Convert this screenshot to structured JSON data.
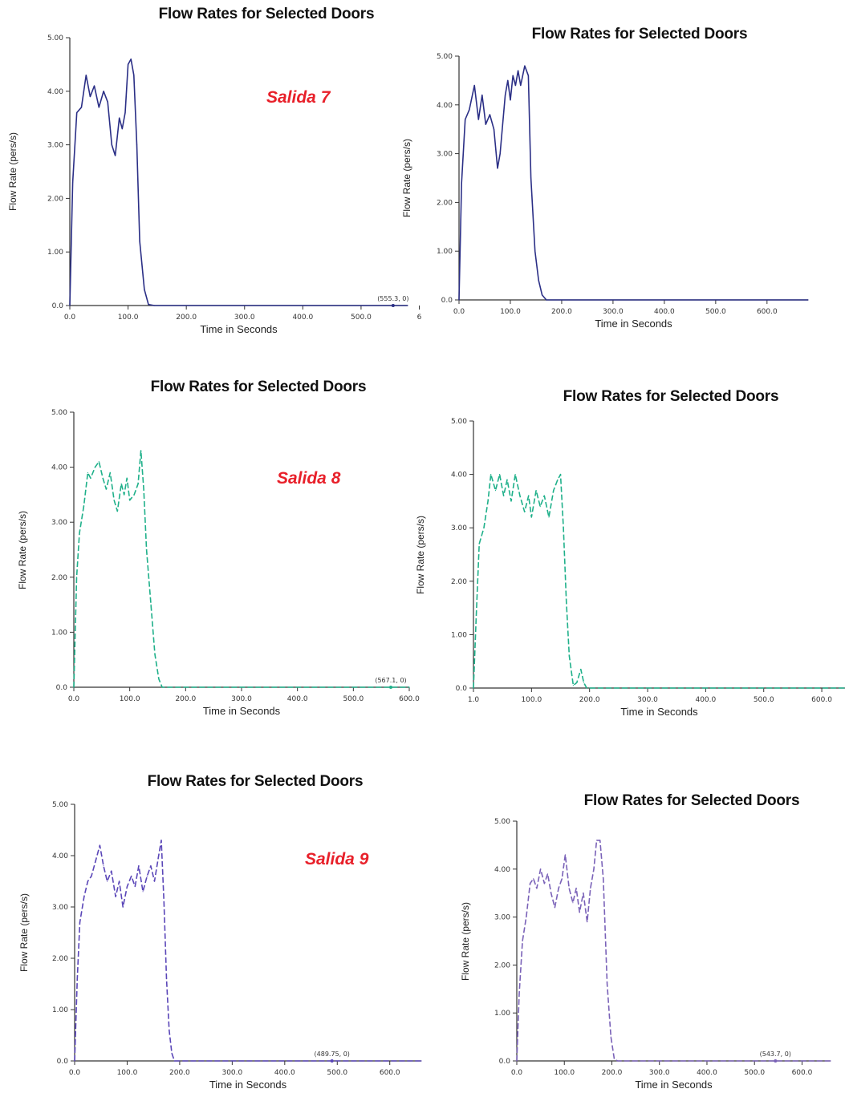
{
  "colors": {
    "salida_label": "#e8202a",
    "axis": "#333333"
  },
  "chart_data": [
    {
      "type": "line",
      "title": "Flow Rates for Selected Doors",
      "annotation_label": "Salida 7",
      "xlabel": "Time in Seconds",
      "ylabel": "Flow Rate (pers/s)",
      "color": "#2b2f86",
      "dash": false,
      "xlim": [
        0,
        580
      ],
      "ylim": [
        0,
        5
      ],
      "x_ticks": [
        "0.0",
        "100.0",
        "200.0",
        "300.0",
        "400.0",
        "500.0",
        "6"
      ],
      "y_ticks": [
        "0.0",
        "1.00",
        "2.00",
        "3.00",
        "4.00",
        "5.00"
      ],
      "marker_label": "(555.3, 0)",
      "marker_x": 555,
      "series": [
        {
          "x": [
            0,
            5,
            12,
            20,
            28,
            35,
            42,
            50,
            58,
            65,
            72,
            78,
            85,
            90,
            95,
            100,
            105,
            110,
            115,
            120,
            128,
            135,
            145,
            580
          ],
          "y": [
            0,
            2.3,
            3.6,
            3.7,
            4.3,
            3.9,
            4.1,
            3.7,
            4.0,
            3.8,
            3.0,
            2.8,
            3.5,
            3.3,
            3.6,
            4.5,
            4.6,
            4.3,
            3.0,
            1.2,
            0.3,
            0.02,
            0,
            0
          ]
        }
      ]
    },
    {
      "type": "line",
      "title": "Flow Rates for Selected Doors",
      "xlabel": "Time in Seconds",
      "ylabel": "Flow Rate (pers/s)",
      "color": "#2b2f86",
      "dash": false,
      "xlim": [
        0,
        680
      ],
      "ylim": [
        0,
        5
      ],
      "x_ticks": [
        "0.0",
        "100.0",
        "200.0",
        "300.0",
        "400.0",
        "500.0",
        "600.0"
      ],
      "y_ticks": [
        "0.0",
        "1.00",
        "2.00",
        "3.00",
        "4.00",
        "5.00"
      ],
      "series": [
        {
          "x": [
            0,
            5,
            12,
            20,
            30,
            38,
            45,
            52,
            60,
            68,
            75,
            80,
            85,
            90,
            95,
            100,
            105,
            110,
            115,
            120,
            128,
            135,
            140,
            148,
            155,
            162,
            170,
            680
          ],
          "y": [
            0,
            2.4,
            3.7,
            3.9,
            4.4,
            3.7,
            4.2,
            3.6,
            3.8,
            3.5,
            2.7,
            3.0,
            3.6,
            4.2,
            4.5,
            4.1,
            4.6,
            4.4,
            4.7,
            4.4,
            4.8,
            4.6,
            2.5,
            1.0,
            0.4,
            0.1,
            0,
            0
          ]
        }
      ]
    },
    {
      "type": "line",
      "title": "Flow Rates for Selected Doors",
      "annotation_label": "Salida 8",
      "xlabel": "Time in Seconds",
      "ylabel": "Flow Rate (pers/s)",
      "color": "#1fb08a",
      "dash": true,
      "xlim": [
        0,
        600
      ],
      "ylim": [
        0,
        5
      ],
      "x_ticks": [
        "0.0",
        "100.0",
        "200.0",
        "300.0",
        "400.0",
        "500.0",
        "600.0"
      ],
      "y_ticks": [
        "0.0",
        "1.00",
        "2.00",
        "3.00",
        "4.00",
        "5.00"
      ],
      "marker_label": "(567.1, 0)",
      "marker_x": 567,
      "series": [
        {
          "x": [
            0,
            5,
            10,
            18,
            25,
            30,
            38,
            45,
            52,
            58,
            65,
            72,
            78,
            85,
            90,
            95,
            100,
            108,
            115,
            120,
            125,
            130,
            138,
            145,
            152,
            158,
            600
          ],
          "y": [
            0,
            2.0,
            2.8,
            3.3,
            3.9,
            3.8,
            4.0,
            4.1,
            3.8,
            3.6,
            3.9,
            3.4,
            3.2,
            3.7,
            3.5,
            3.8,
            3.4,
            3.5,
            3.7,
            4.3,
            3.6,
            2.5,
            1.5,
            0.6,
            0.15,
            0,
            0
          ]
        }
      ]
    },
    {
      "type": "line",
      "title": "Flow Rates for Selected Doors",
      "xlabel": "Time in Seconds",
      "ylabel": "Flow Rate (pers/s)",
      "color": "#1fb08a",
      "dash": true,
      "xlim": [
        0,
        640
      ],
      "ylim": [
        0,
        5
      ],
      "x_ticks": [
        "1.0",
        "100.0",
        "200.0",
        "300.0",
        "400.0",
        "500.0",
        "600.0"
      ],
      "y_ticks": [
        "0.0",
        "1.00",
        "2.00",
        "3.00",
        "4.00",
        "5.00"
      ],
      "series": [
        {
          "x": [
            0,
            5,
            10,
            18,
            25,
            30,
            38,
            45,
            52,
            58,
            65,
            72,
            80,
            88,
            95,
            100,
            108,
            115,
            122,
            130,
            138,
            145,
            150,
            155,
            160,
            165,
            172,
            178,
            185,
            190,
            195,
            200,
            640
          ],
          "y": [
            0,
            1.4,
            2.7,
            3.0,
            3.5,
            4.0,
            3.7,
            4.0,
            3.6,
            3.9,
            3.5,
            4.0,
            3.6,
            3.3,
            3.6,
            3.2,
            3.7,
            3.4,
            3.6,
            3.2,
            3.7,
            3.9,
            4.0,
            3.0,
            1.6,
            0.6,
            0.05,
            0.1,
            0.35,
            0.1,
            0,
            0,
            0
          ]
        }
      ]
    },
    {
      "type": "line",
      "title": "Flow Rates for Selected Doors",
      "annotation_label": "Salida 9",
      "xlabel": "Time in Seconds",
      "ylabel": "Flow Rate (pers/s)",
      "color": "#5a46b8",
      "dash": true,
      "xlim": [
        0,
        660
      ],
      "ylim": [
        0,
        5
      ],
      "x_ticks": [
        "0.0",
        "100.0",
        "200.0",
        "300.0",
        "400.0",
        "500.0",
        "600.0"
      ],
      "y_ticks": [
        "0.0",
        "1.00",
        "2.00",
        "3.00",
        "4.00",
        "5.00"
      ],
      "marker_label": "(489.75, 0)",
      "marker_x": 490,
      "series": [
        {
          "x": [
            0,
            5,
            10,
            18,
            25,
            32,
            40,
            48,
            55,
            62,
            70,
            78,
            85,
            92,
            100,
            108,
            115,
            122,
            130,
            138,
            145,
            152,
            160,
            165,
            170,
            175,
            180,
            185,
            190,
            660
          ],
          "y": [
            0,
            1.6,
            2.7,
            3.2,
            3.5,
            3.6,
            3.9,
            4.2,
            3.8,
            3.5,
            3.7,
            3.2,
            3.5,
            3.0,
            3.4,
            3.6,
            3.4,
            3.8,
            3.3,
            3.6,
            3.8,
            3.5,
            4.0,
            4.3,
            3.1,
            1.6,
            0.6,
            0.15,
            0,
            0
          ]
        }
      ]
    },
    {
      "type": "line",
      "title": "Flow Rates for Selected Doors",
      "xlabel": "Time in Seconds",
      "ylabel": "Flow Rate (pers/s)",
      "color": "#7a62b8",
      "dash": true,
      "xlim": [
        0,
        660
      ],
      "ylim": [
        0,
        5
      ],
      "x_ticks": [
        "0.0",
        "100.0",
        "200.0",
        "300.0",
        "400.0",
        "500.0",
        "600.0"
      ],
      "y_ticks": [
        "0.0",
        "1.00",
        "2.00",
        "3.00",
        "4.00",
        "5.00"
      ],
      "marker_label": "(543.7, 0)",
      "marker_x": 544,
      "series": [
        {
          "x": [
            0,
            5,
            12,
            20,
            28,
            35,
            42,
            50,
            58,
            65,
            72,
            80,
            88,
            95,
            102,
            110,
            118,
            125,
            132,
            140,
            148,
            155,
            162,
            168,
            175,
            182,
            190,
            198,
            205,
            212,
            660
          ],
          "y": [
            0,
            1.4,
            2.5,
            3.0,
            3.7,
            3.8,
            3.6,
            4.0,
            3.7,
            3.9,
            3.5,
            3.2,
            3.6,
            3.8,
            4.3,
            3.6,
            3.3,
            3.6,
            3.1,
            3.5,
            2.9,
            3.6,
            4.0,
            4.6,
            4.6,
            3.8,
            1.6,
            0.5,
            0.05,
            0,
            0
          ]
        }
      ]
    }
  ]
}
